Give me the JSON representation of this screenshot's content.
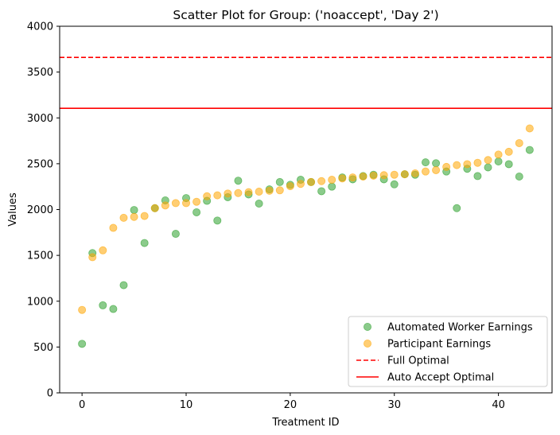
{
  "chart_data": {
    "type": "scatter",
    "title": "Scatter Plot for Group: ('noaccept', 'Day 2')",
    "xlabel": "Treatment ID",
    "ylabel": "Values",
    "xlim": [
      -2.15,
      45.15
    ],
    "ylim": [
      0,
      4000
    ],
    "xticks": [
      0,
      10,
      20,
      30,
      40
    ],
    "yticks": [
      0,
      500,
      1000,
      1500,
      2000,
      2500,
      3000,
      3500,
      4000
    ],
    "grid": false,
    "legend_position": "lower-right",
    "series": [
      {
        "name": "Automated Worker Earnings",
        "color": "#2ca02c",
        "marker": "circle",
        "x": [
          0,
          1,
          2,
          3,
          4,
          5,
          6,
          7,
          8,
          9,
          10,
          11,
          12,
          13,
          14,
          15,
          16,
          17,
          18,
          19,
          20,
          21,
          22,
          23,
          24,
          25,
          26,
          27,
          28,
          29,
          30,
          31,
          32,
          33,
          34,
          35,
          36,
          37,
          38,
          39,
          40,
          41,
          42,
          43
        ],
        "y": [
          535,
          1525,
          955,
          915,
          1175,
          1995,
          1635,
          2015,
          2100,
          1735,
          2125,
          1970,
          2095,
          1880,
          2135,
          2315,
          2165,
          2065,
          2220,
          2300,
          2270,
          2325,
          2300,
          2200,
          2250,
          2350,
          2330,
          2365,
          2380,
          2330,
          2275,
          2385,
          2380,
          2515,
          2505,
          2415,
          2015,
          2445,
          2365,
          2460,
          2525,
          2495,
          2360,
          2650
        ]
      },
      {
        "name": "Participant Earnings",
        "color": "#ffa500",
        "marker": "circle",
        "x": [
          0,
          1,
          2,
          3,
          4,
          5,
          6,
          7,
          8,
          9,
          10,
          11,
          12,
          13,
          14,
          15,
          16,
          17,
          18,
          19,
          20,
          21,
          22,
          23,
          24,
          25,
          26,
          27,
          28,
          29,
          30,
          31,
          32,
          33,
          34,
          35,
          36,
          37,
          38,
          39,
          40,
          41,
          42,
          43
        ],
        "y": [
          905,
          1480,
          1555,
          1800,
          1910,
          1920,
          1930,
          2015,
          2045,
          2070,
          2070,
          2085,
          2145,
          2155,
          2175,
          2180,
          2190,
          2195,
          2205,
          2210,
          2255,
          2280,
          2300,
          2310,
          2325,
          2340,
          2350,
          2360,
          2370,
          2375,
          2380,
          2385,
          2395,
          2415,
          2430,
          2465,
          2485,
          2495,
          2510,
          2540,
          2600,
          2630,
          2725,
          2885
        ]
      }
    ],
    "hlines": [
      {
        "name": "Full Optimal",
        "y": 3660,
        "color": "#ff0000",
        "style": "dashed"
      },
      {
        "name": "Auto Accept Optimal",
        "y": 3105,
        "color": "#ff0000",
        "style": "solid"
      }
    ]
  }
}
